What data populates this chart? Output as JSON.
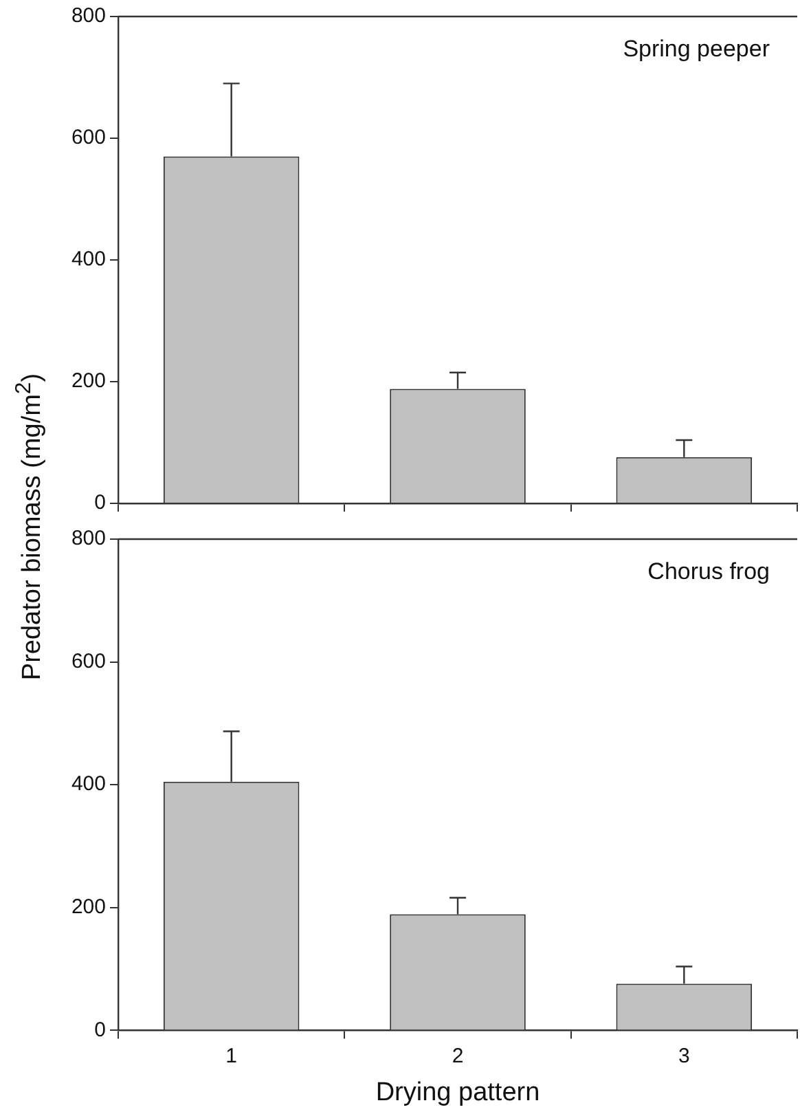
{
  "chart_data": [
    {
      "type": "bar",
      "ylabel": "Predator biomass (mg/m$^{2}$)",
      "annotations": [
        "Spring peeper"
      ],
      "categories": [
        "1",
        "2",
        "3"
      ],
      "values": [
        570,
        188,
        76
      ],
      "errors": [
        [
          570,
          690
        ],
        [
          188,
          215
        ],
        [
          76,
          104
        ]
      ],
      "color": "#c0c0c0",
      "ylim": [
        0,
        800
      ],
      "yticks": [
        0,
        200,
        400,
        600,
        800
      ],
      "tick_labels": "y"
    },
    {
      "type": "bar",
      "xlabel": "Drying pattern",
      "annotations": [
        "Chorus frog"
      ],
      "categories": [
        "1",
        "2",
        "3"
      ],
      "values": [
        405,
        189,
        76
      ],
      "errors": [
        [
          405,
          487
        ],
        [
          189,
          216
        ],
        [
          76,
          104
        ]
      ],
      "color": "#c0c0c0",
      "ylim": [
        0,
        800
      ],
      "yticks": [
        0,
        200,
        400,
        600,
        800
      ]
    }
  ]
}
